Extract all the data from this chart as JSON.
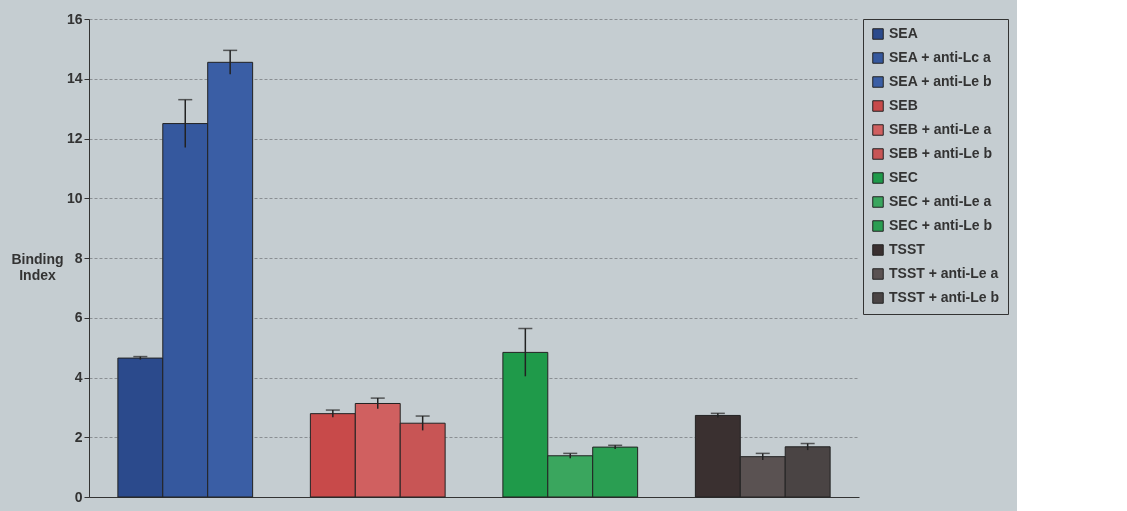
{
  "chart_data": {
    "type": "bar",
    "ylabel": "Binding\nIndex",
    "categories": [
      null,
      null,
      null,
      null
    ],
    "ylim": [
      0,
      16
    ],
    "yticks": [
      0,
      2,
      4,
      6,
      8,
      10,
      12,
      14,
      16
    ],
    "grid": "y",
    "legend": "right",
    "series": [
      {
        "name": "SEA",
        "color": "#2b4a8c",
        "values": [
          4.65,
          null,
          null,
          null
        ],
        "errors": [
          0.05,
          null,
          null,
          null
        ]
      },
      {
        "name": "SEA + anti-Lc a",
        "color": "#35589e",
        "values": [
          12.5,
          null,
          null,
          null
        ],
        "errors": [
          0.8,
          null,
          null,
          null
        ]
      },
      {
        "name": "SEA + anti-Le b",
        "color": "#3a5ea5",
        "values": [
          14.55,
          null,
          null,
          null
        ],
        "errors": [
          0.4,
          null,
          null,
          null
        ]
      },
      {
        "name": "SEB",
        "color": "#c84a4a",
        "values": [
          null,
          2.79,
          null,
          null
        ],
        "errors": [
          null,
          0.12,
          null,
          null
        ]
      },
      {
        "name": "SEB + anti-Le a",
        "color": "#d06060",
        "values": [
          null,
          3.13,
          null,
          null
        ],
        "errors": [
          null,
          0.18,
          null,
          null
        ]
      },
      {
        "name": "SEB + anti-Le b",
        "color": "#c85555",
        "values": [
          null,
          2.47,
          null,
          null
        ],
        "errors": [
          null,
          0.24,
          null,
          null
        ]
      },
      {
        "name": "SEC",
        "color": "#1f9a4a",
        "values": [
          null,
          null,
          4.84,
          null
        ],
        "errors": [
          null,
          null,
          0.8,
          null
        ]
      },
      {
        "name": "SEC + anti-Le a",
        "color": "#3aa65e",
        "values": [
          null,
          null,
          1.38,
          null
        ],
        "errors": [
          null,
          null,
          0.08,
          null
        ]
      },
      {
        "name": "SEC + anti-Le b",
        "color": "#2a9e52",
        "values": [
          null,
          null,
          1.67,
          null
        ],
        "errors": [
          null,
          null,
          0.06,
          null
        ]
      },
      {
        "name": "TSST",
        "color": "#3a3030",
        "values": [
          null,
          null,
          null,
          2.73
        ],
        "errors": [
          null,
          null,
          null,
          0.07
        ]
      },
      {
        "name": "TSST + anti-Le a",
        "color": "#5a5252",
        "values": [
          null,
          null,
          null,
          1.35
        ],
        "errors": [
          null,
          null,
          null,
          0.11
        ]
      },
      {
        "name": "TSST + anti-Le b",
        "color": "#4a4444",
        "values": [
          null,
          null,
          null,
          1.68
        ],
        "errors": [
          null,
          null,
          null,
          0.11
        ]
      }
    ]
  }
}
